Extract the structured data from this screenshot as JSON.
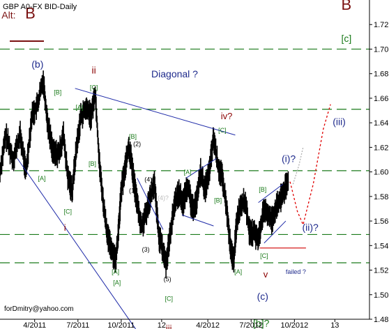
{
  "chart_data": {
    "type": "line",
    "title": "GBP A0-FX BID-Daily",
    "xlabel": "",
    "ylabel": "",
    "ylim": [
      1.48,
      1.74
    ],
    "grid": false,
    "y_ticks": [
      "1.72",
      "1.70",
      "1.68",
      "1.66",
      "1.64",
      "1.62",
      "1.60",
      "1.58",
      "1.56",
      "1.54",
      "1.52",
      "1.50",
      "1.48"
    ],
    "x_ticks": [
      "4/2011",
      "7/2011",
      "10/2011",
      "12",
      "4/2012",
      "7/2012",
      "10/2012",
      "13"
    ],
    "x_tick_months": [
      3,
      6,
      9,
      11.8,
      15,
      18,
      21,
      23.8
    ],
    "xlim_months": [
      0.6,
      26.2
    ],
    "h_levels": [
      1.7,
      1.651,
      1.601,
      1.549,
      1.526
    ],
    "support_line": {
      "y": 1.538,
      "x_months": [
        18.6,
        21.8
      ]
    },
    "price_path": [
      [
        0.6,
        1.6
      ],
      [
        1.0,
        1.63
      ],
      [
        1.5,
        1.61
      ],
      [
        2.0,
        1.63
      ],
      [
        2.4,
        1.6
      ],
      [
        2.8,
        1.645
      ],
      [
        3.2,
        1.655
      ],
      [
        3.6,
        1.675
      ],
      [
        3.9,
        1.64
      ],
      [
        4.3,
        1.615
      ],
      [
        4.7,
        1.615
      ],
      [
        5.0,
        1.63
      ],
      [
        5.3,
        1.595
      ],
      [
        5.6,
        1.585
      ],
      [
        5.9,
        1.62
      ],
      [
        6.2,
        1.645
      ],
      [
        6.6,
        1.652
      ],
      [
        6.9,
        1.645
      ],
      [
        7.2,
        1.665
      ],
      [
        7.5,
        1.605
      ],
      [
        7.8,
        1.57
      ],
      [
        8.1,
        1.545
      ],
      [
        8.4,
        1.535
      ],
      [
        8.6,
        1.528
      ],
      [
        8.8,
        1.55
      ],
      [
        9.0,
        1.585
      ],
      [
        9.3,
        1.605
      ],
      [
        9.5,
        1.62
      ],
      [
        9.7,
        1.61
      ],
      [
        9.9,
        1.59
      ],
      [
        10.1,
        1.575
      ],
      [
        10.4,
        1.555
      ],
      [
        10.7,
        1.565
      ],
      [
        11.0,
        1.58
      ],
      [
        11.3,
        1.59
      ],
      [
        11.6,
        1.548
      ],
      [
        11.9,
        1.535
      ],
      [
        12.1,
        1.525
      ],
      [
        12.4,
        1.55
      ],
      [
        12.7,
        1.575
      ],
      [
        13.0,
        1.583
      ],
      [
        13.3,
        1.575
      ],
      [
        13.6,
        1.59
      ],
      [
        13.9,
        1.57
      ],
      [
        14.2,
        1.575
      ],
      [
        14.5,
        1.6
      ],
      [
        14.8,
        1.585
      ],
      [
        15.1,
        1.6
      ],
      [
        15.4,
        1.628
      ],
      [
        15.7,
        1.605
      ],
      [
        16.0,
        1.595
      ],
      [
        16.3,
        1.57
      ],
      [
        16.6,
        1.535
      ],
      [
        16.8,
        1.528
      ],
      [
        17.0,
        1.56
      ],
      [
        17.3,
        1.575
      ],
      [
        17.6,
        1.575
      ],
      [
        17.9,
        1.55
      ],
      [
        18.2,
        1.55
      ],
      [
        18.5,
        1.545
      ],
      [
        18.8,
        1.565
      ],
      [
        19.1,
        1.568
      ],
      [
        19.4,
        1.56
      ],
      [
        19.7,
        1.57
      ],
      [
        20.0,
        1.577
      ],
      [
        20.3,
        1.585
      ],
      [
        20.6,
        1.592
      ]
    ],
    "channels": [
      {
        "x1": 5.8,
        "y1": 1.668,
        "x2": 16.9,
        "y2": 1.63
      },
      {
        "x1": 1.8,
        "y1": 1.611,
        "x2": 10.0,
        "y2": 1.472
      },
      {
        "x1": 15.6,
        "y1": 1.611,
        "x2": 13.5,
        "y2": 1.595
      },
      {
        "x1": 10.1,
        "y1": 1.595,
        "x2": 11.9,
        "y2": 1.553
      },
      {
        "x1": 13.2,
        "y1": 1.565,
        "x2": 15.4,
        "y2": 1.556
      },
      {
        "x1": 18.5,
        "y1": 1.575,
        "x2": 20.2,
        "y2": 1.59
      },
      {
        "x1": 18.9,
        "y1": 1.542,
        "x2": 20.4,
        "y2": 1.56
      }
    ],
    "projections": [
      {
        "style": "dotted-grey",
        "points": [
          [
            20.9,
            1.59
          ],
          [
            21.3,
            1.605
          ],
          [
            21.6,
            1.62
          ]
        ]
      },
      {
        "style": "dotted-red",
        "points": [
          [
            20.7,
            1.592
          ],
          [
            21.2,
            1.568
          ],
          [
            21.6,
            1.557
          ],
          [
            22.3,
            1.59
          ],
          [
            23.0,
            1.635
          ],
          [
            23.5,
            1.655
          ]
        ]
      }
    ],
    "wave_labels": [
      {
        "text": "Alt:",
        "color": "#7a1010",
        "m": 1.2,
        "p": 1.725,
        "size": 14
      },
      {
        "text": "B",
        "color": "#7a1010",
        "m": 2.7,
        "p": 1.725,
        "size": 22
      },
      {
        "text": "B",
        "color": "#7a1010",
        "m": 24.6,
        "p": 1.732,
        "size": 22
      },
      {
        "text": "[c]",
        "color": "#1a7a1a",
        "m": 24.6,
        "p": 1.706,
        "size": 14
      },
      {
        "text": "(b)",
        "color": "#1e2a8c",
        "m": 3.2,
        "p": 1.685,
        "size": 14
      },
      {
        "text": "ii",
        "color": "#8b0000",
        "m": 7.1,
        "p": 1.68,
        "size": 14
      },
      {
        "text": "Diagonal ?",
        "color": "#1e2a8c",
        "m": 12.7,
        "p": 1.677,
        "size": 14
      },
      {
        "text": "[B]",
        "color": "#1a7a1a",
        "m": 4.6,
        "p": 1.663,
        "size": 9
      },
      {
        "text": "[C]",
        "color": "#1a7a1a",
        "m": 7.1,
        "p": 1.667,
        "size": 9
      },
      {
        "text": "[A]",
        "color": "#1a7a1a",
        "m": 6.1,
        "p": 1.651,
        "size": 9
      },
      {
        "text": "[B]",
        "color": "#1a7a1a",
        "m": 9.8,
        "p": 1.627,
        "size": 9
      },
      {
        "text": "(2)",
        "color": "#000000",
        "m": 10.1,
        "p": 1.621,
        "size": 9
      },
      {
        "text": "[B]",
        "color": "#1a7a1a",
        "m": 7.0,
        "p": 1.605,
        "size": 9
      },
      {
        "text": "[A]",
        "color": "#1a7a1a",
        "m": 3.5,
        "p": 1.593,
        "size": 9
      },
      {
        "text": "[C]",
        "color": "#1a7a1a",
        "m": 5.3,
        "p": 1.566,
        "size": 9
      },
      {
        "text": "i",
        "color": "#8b0000",
        "m": 5.1,
        "p": 1.552,
        "size": 13
      },
      {
        "text": "(1)",
        "color": "#000000",
        "m": 9.8,
        "p": 1.583,
        "size": 9
      },
      {
        "text": "(4)?",
        "color": "#000000",
        "m": 11.0,
        "p": 1.592,
        "size": 9
      },
      {
        "text": "(4)?",
        "color": "#bbbbbb",
        "m": 11.9,
        "p": 1.577,
        "size": 9
      },
      {
        "text": "(3)",
        "color": "#000000",
        "m": 10.7,
        "p": 1.535,
        "size": 9
      },
      {
        "text": "(5)",
        "color": "#000000",
        "m": 12.2,
        "p": 1.511,
        "size": 9
      },
      {
        "text": "[A]",
        "color": "#1a7a1a",
        "m": 8.6,
        "p": 1.517,
        "size": 9
      },
      {
        "text": "[A]",
        "color": "#1a7a1a",
        "m": 8.7,
        "p": 1.508,
        "size": 9
      },
      {
        "text": "[C]",
        "color": "#1a7a1a",
        "m": 12.3,
        "p": 1.495,
        "size": 9
      },
      {
        "text": "iii",
        "color": "#8b0000",
        "m": 12.3,
        "p": 1.47,
        "size": 13
      },
      {
        "text": "[A]",
        "color": "#1a7a1a",
        "m": 13.6,
        "p": 1.598,
        "size": 9
      },
      {
        "text": "[B]",
        "color": "#1a7a1a",
        "m": 15.7,
        "p": 1.575,
        "size": 9
      },
      {
        "text": "iv?",
        "color": "#8b0000",
        "m": 16.3,
        "p": 1.643,
        "size": 13
      },
      {
        "text": "[C]",
        "color": "#1a7a1a",
        "m": 16.0,
        "p": 1.632,
        "size": 9
      },
      {
        "text": "[B]",
        "color": "#1a7a1a",
        "m": 18.8,
        "p": 1.584,
        "size": 9
      },
      {
        "text": "[A]",
        "color": "#1a7a1a",
        "m": 17.1,
        "p": 1.517,
        "size": 9
      },
      {
        "text": "[C]",
        "color": "#1a7a1a",
        "m": 18.9,
        "p": 1.53,
        "size": 9
      },
      {
        "text": "v",
        "color": "#8b0000",
        "m": 19.0,
        "p": 1.514,
        "size": 13
      },
      {
        "text": "failed ?",
        "color": "#1e2a8c",
        "m": 21.1,
        "p": 1.517,
        "size": 9
      },
      {
        "text": "(c)",
        "color": "#1e2a8c",
        "m": 18.8,
        "p": 1.496,
        "size": 14
      },
      {
        "text": "[b]?",
        "color": "#1a7a1a",
        "m": 18.7,
        "p": 1.474,
        "size": 14
      },
      {
        "text": "(i)?",
        "color": "#1e2a8c",
        "m": 20.6,
        "p": 1.608,
        "size": 14
      },
      {
        "text": "(ii)?",
        "color": "#1e2a8c",
        "m": 22.1,
        "p": 1.552,
        "size": 14
      },
      {
        "text": "(iii)",
        "color": "#1e2a8c",
        "m": 24.1,
        "p": 1.638,
        "size": 14
      }
    ],
    "footer": "forDmitry@yahoo.com",
    "colors": {
      "price": "#000000",
      "level_line": "#1a7a1a",
      "channel_line": "#1e2aa8",
      "support_line": "#d00000",
      "projection_red": "#e00000",
      "projection_grey": "#b0b0b0",
      "alt_underline": "#7a1010"
    }
  }
}
